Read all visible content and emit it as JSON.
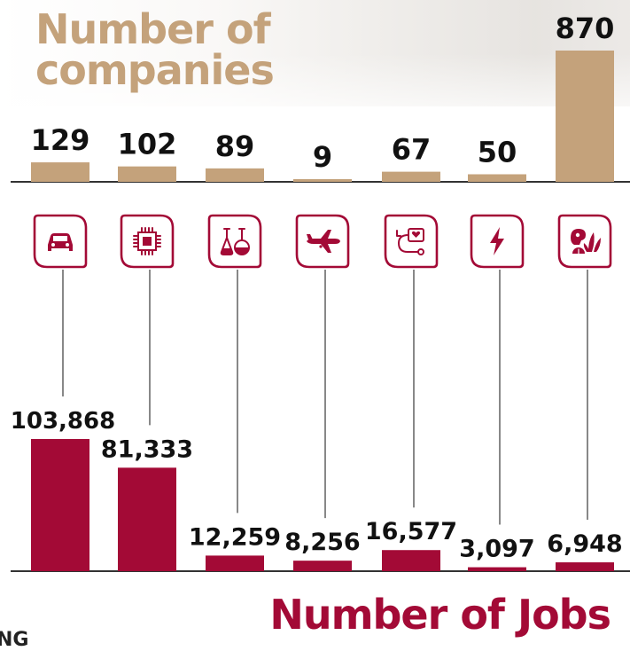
{
  "titles": {
    "top": "Number of companies",
    "bottom": "Number of Jobs",
    "footer_fragment": "NG"
  },
  "colors": {
    "companies": "#c4a27b",
    "jobs": "#a30a36",
    "axis": "#333333",
    "connector": "#555555"
  },
  "chart_data": [
    {
      "type": "bar",
      "title": "Number of companies",
      "categories": [
        "automotive",
        "electronics",
        "chemicals",
        "aerospace",
        "medical devices",
        "energy",
        "food and agriculture"
      ],
      "icons": [
        "car-icon",
        "microchip-icon",
        "flask-icon",
        "airplane-icon",
        "medical-device-icon",
        "lightning-icon",
        "food-icon"
      ],
      "values": [
        129,
        102,
        89,
        9,
        67,
        50,
        870
      ],
      "labels": [
        "129",
        "102",
        "89",
        "9",
        "67",
        "50",
        "870"
      ]
    },
    {
      "type": "bar",
      "title": "Number of Jobs",
      "categories": [
        "automotive",
        "electronics",
        "chemicals",
        "aerospace",
        "medical devices",
        "energy",
        "food and agriculture"
      ],
      "values": [
        103868,
        81333,
        12259,
        8256,
        16577,
        3097,
        6948
      ],
      "labels": [
        "103,868",
        "81,333",
        "12,259",
        "8,256",
        "16,577",
        "3,097",
        "6,948"
      ]
    }
  ]
}
